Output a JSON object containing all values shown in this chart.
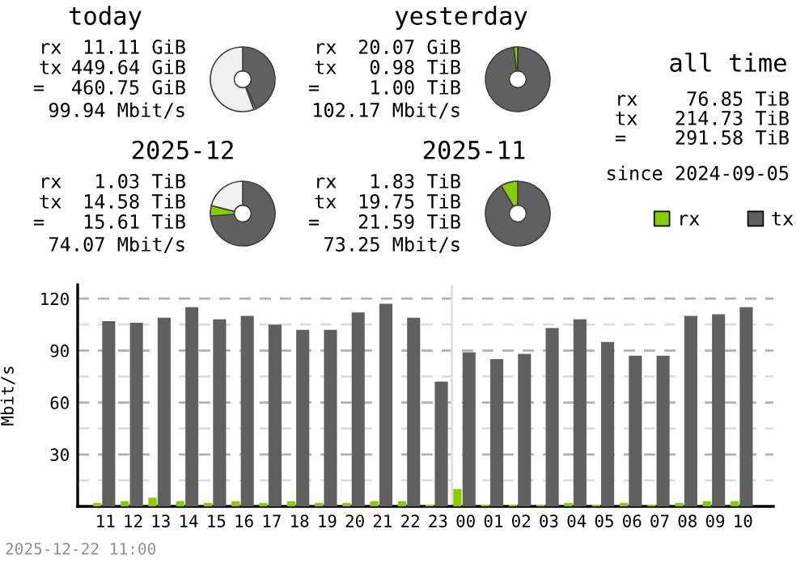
{
  "chart_data": [
    {
      "type": "donut",
      "title": "today",
      "categories": [
        null,
        null,
        null
      ],
      "values": [
        43.3,
        1.1,
        55.6
      ],
      "colors": [
        "#606060",
        "#88cc00",
        "#f0f0f0"
      ],
      "annotations": [
        "rx",
        "11.11 GiB",
        "tx",
        "449.64 GiB",
        "=",
        "460.75 GiB",
        "99.94 Mbit/s"
      ]
    },
    {
      "type": "donut",
      "title": "yesterday",
      "categories": [
        null,
        null,
        null
      ],
      "values": [
        98,
        2,
        0
      ],
      "colors": [
        "#606060",
        "#88cc00",
        "#f0f0f0"
      ],
      "annotations": [
        "rx",
        "20.07 GiB",
        "tx",
        "0.98 TiB",
        "=",
        "1.00 TiB",
        "102.17 Mbit/s"
      ]
    },
    {
      "type": "donut",
      "title": "2025-12",
      "categories": [
        null,
        null,
        null
      ],
      "values": [
        73.8,
        5.2,
        21
      ],
      "colors": [
        "#606060",
        "#88cc00",
        "#f0f0f0"
      ],
      "annotations": [
        "rx",
        "1.03 TiB",
        "tx",
        "14.58 TiB",
        "=",
        "15.61 TiB",
        "74.07 Mbit/s"
      ]
    },
    {
      "type": "donut",
      "title": "2025-11",
      "categories": [
        null,
        null,
        null
      ],
      "values": [
        91.5,
        8.5,
        0
      ],
      "colors": [
        "#606060",
        "#88cc00",
        "#f0f0f0"
      ],
      "annotations": [
        "rx",
        "1.83 TiB",
        "tx",
        "19.75 TiB",
        "=",
        "21.59 TiB",
        "73.25 Mbit/s"
      ]
    },
    {
      "type": "other",
      "title": "all time",
      "annotations": [
        "rx",
        "76.85 TiB",
        "tx",
        "214.73 TiB",
        "=",
        "291.58 TiB",
        "since 2024-09-05"
      ],
      "series": [
        {
          "name": "rx",
          "color": "#88cc00"
        },
        {
          "name": "tx",
          "color": "#606060"
        }
      ],
      "legend": "bottom"
    },
    {
      "type": "bar",
      "ylabel": "Mbit/s",
      "categories": [
        "11",
        "12",
        "13",
        "14",
        "15",
        "16",
        "17",
        "18",
        "19",
        "20",
        "21",
        "22",
        "23",
        "00",
        "01",
        "02",
        "03",
        "04",
        "05",
        "06",
        "07",
        "08",
        "09",
        "10"
      ],
      "series": [
        {
          "color": "#88cc00",
          "values": [
            2,
            3,
            5,
            3,
            2,
            3,
            2,
            3,
            2,
            2,
            3,
            3,
            1,
            10,
            1,
            1,
            1,
            2,
            1,
            2,
            1,
            2,
            3,
            3
          ]
        },
        {
          "color": "#606060",
          "values": [
            107,
            106,
            109,
            115,
            108,
            110,
            105,
            102,
            102,
            112,
            117,
            109,
            72,
            89,
            85,
            88,
            103,
            108,
            95,
            87,
            87,
            110,
            111,
            115
          ]
        }
      ],
      "ylim": [
        0,
        128
      ],
      "yticks": [
        {
          "value": 15,
          "label": null
        },
        30,
        {
          "value": 45,
          "label": null
        },
        60,
        {
          "value": 75,
          "label": null
        },
        90,
        {
          "value": 105,
          "label": null
        },
        120
      ],
      "grid": "y",
      "ref_lines": [
        {
          "axis": "x",
          "value": "00",
          "color": "#e0e0e0"
        }
      ],
      "annotations": [
        "2025-12-22 11:00"
      ]
    }
  ]
}
